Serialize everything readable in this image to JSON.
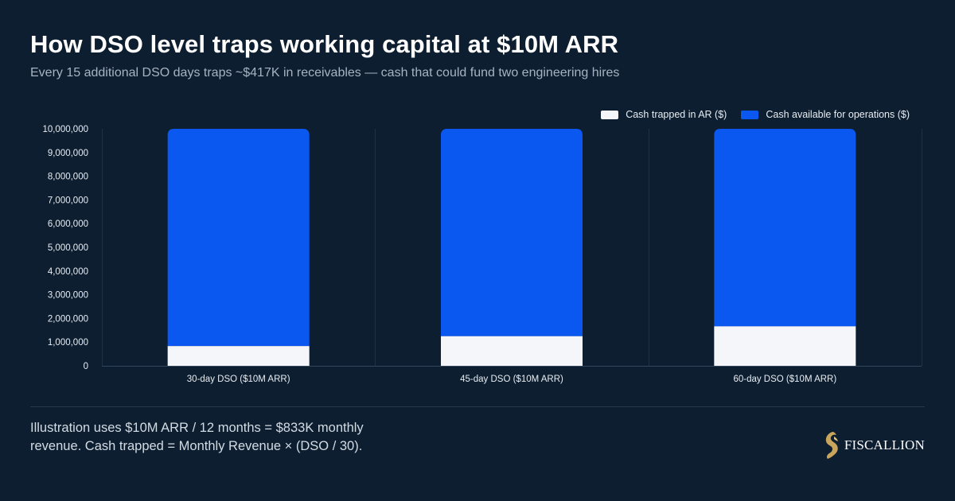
{
  "header": {
    "title": "How DSO level traps working capital at $10M ARR",
    "subtitle": "Every 15 additional DSO days traps ~$417K in receivables — cash that could fund two engineering hires"
  },
  "chart_data": {
    "type": "bar",
    "stacked": true,
    "categories": [
      "30-day DSO ($10M ARR)",
      "45-day DSO ($10M ARR)",
      "60-day DSO ($10M ARR)"
    ],
    "series": [
      {
        "name": "Cash trapped in AR ($)",
        "color": "#f4f6f9",
        "values": [
          833333,
          1250000,
          1666667
        ]
      },
      {
        "name": "Cash available for operations ($)",
        "color": "#0b58f0",
        "values": [
          9166667,
          8750000,
          8333333
        ]
      }
    ],
    "yticks": [
      "0",
      "1,000,000",
      "2,000,000",
      "3,000,000",
      "4,000,000",
      "5,000,000",
      "6,000,000",
      "7,000,000",
      "8,000,000",
      "9,000,000",
      "10,000,000"
    ],
    "ylim": [
      0,
      10000000
    ],
    "legend": "top-right",
    "grid": "vertical category separators"
  },
  "footnote": "Illustration uses $10M ARR / 12 months = $833K monthly revenue. Cash trapped = Monthly Revenue × (DSO / 30).",
  "brand": {
    "name": "FISCALLION",
    "accent": "#c9a45c"
  }
}
